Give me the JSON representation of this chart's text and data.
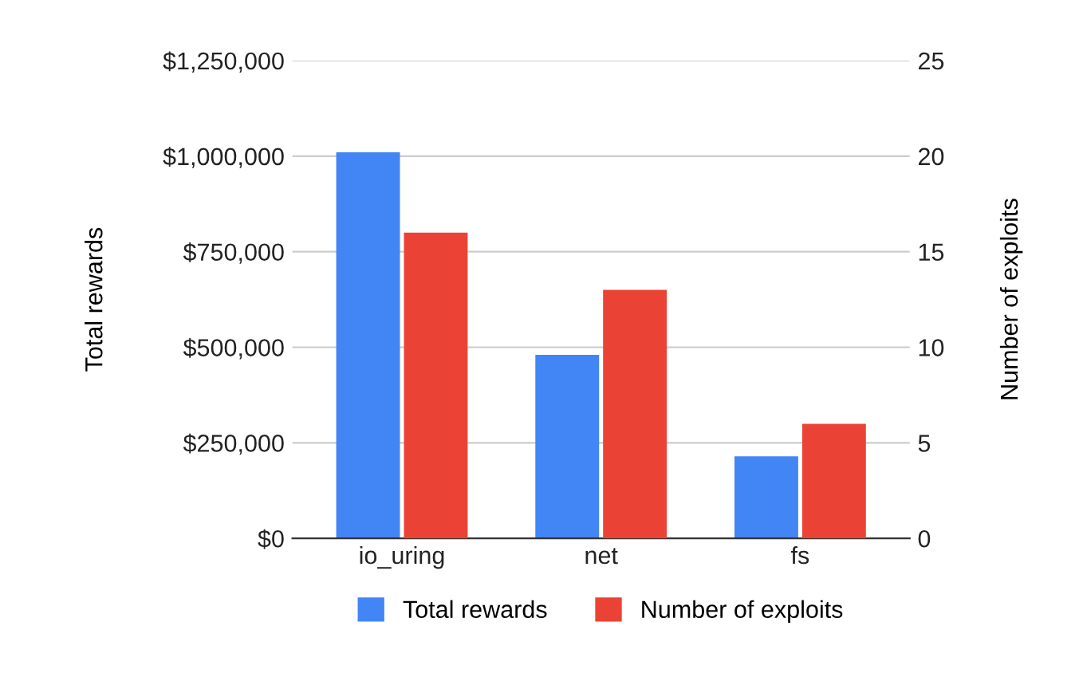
{
  "chart_data": {
    "type": "bar",
    "categories": [
      "io_uring",
      "net",
      "fs"
    ],
    "series": [
      {
        "name": "Total rewards",
        "color": "#4285f4",
        "values": [
          1010000,
          480000,
          215000
        ]
      },
      {
        "name": "Number of exploits",
        "color": "#ea4335",
        "values": [
          16,
          13,
          6
        ],
        "axis": "y2"
      }
    ],
    "ylabel": "Total rewards",
    "y2label": "Number of exploits",
    "ylim": [
      0,
      1250000
    ],
    "yticks": [
      {
        "value": 0,
        "label": "$0"
      },
      {
        "value": 250000,
        "label": "$250,000"
      },
      {
        "value": 500000,
        "label": "$500,000"
      },
      {
        "value": 750000,
        "label": "$750,000"
      },
      {
        "value": 1000000,
        "label": "$1,000,000"
      },
      {
        "value": 1250000,
        "label": "$1,250,000"
      }
    ],
    "y2lim": [
      0,
      25
    ],
    "y2ticks": [
      0,
      5,
      10,
      15,
      20,
      25
    ],
    "grid": "y",
    "legend": "bottom"
  }
}
